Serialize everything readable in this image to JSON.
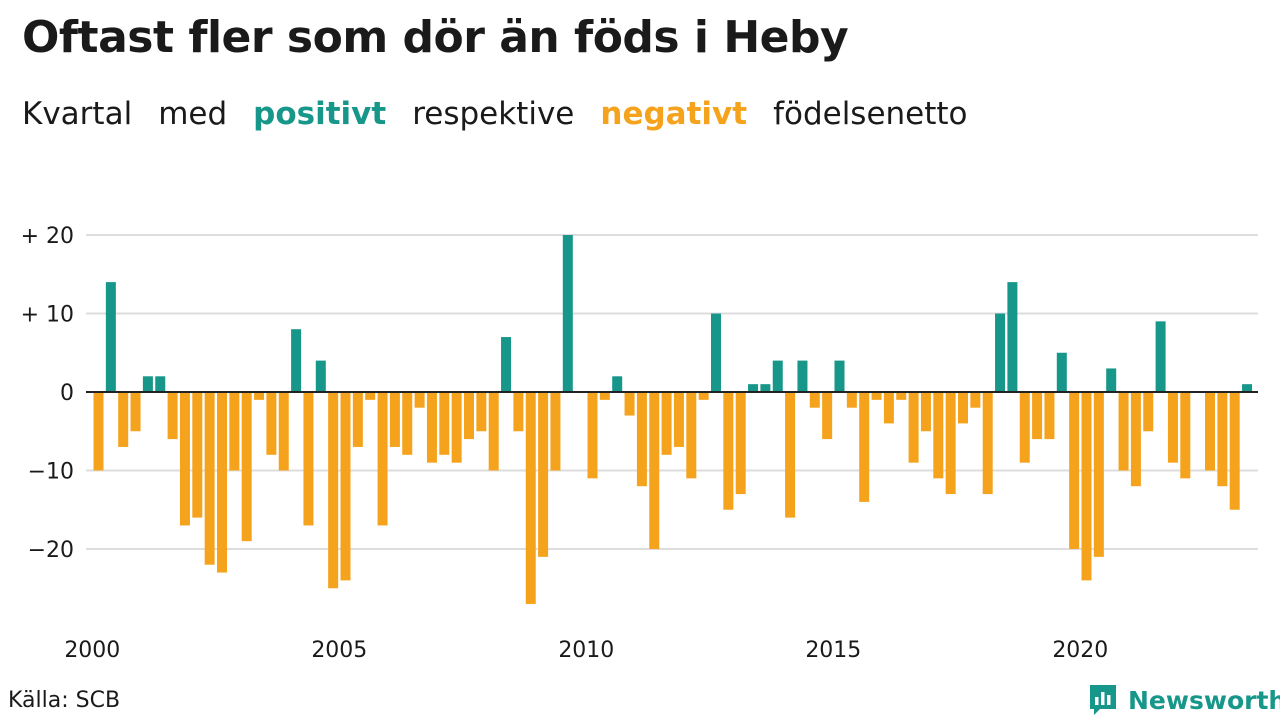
{
  "title": "Oftast fler som dör än föds i Heby",
  "subtitle": {
    "w1": "Kvartal",
    "w2": "med",
    "positive": "positivt",
    "w3": "respektive",
    "negative": "negativt",
    "w4": "födelsenetto"
  },
  "source": "Källa: SCB",
  "brand": {
    "name": "Newsworthy",
    "icon": "newsworthy-logo-icon"
  },
  "colors": {
    "positive": "#17968a",
    "negative": "#f5a31c",
    "grid": "#dddddd",
    "text": "#1a1a1a"
  },
  "chart_data": {
    "type": "bar",
    "title": "Oftast fler som dör än föds i Heby",
    "subtitle": "Kvartal med positivt respektive negativt födelsenetto",
    "xlabel": "",
    "ylabel": "",
    "ylim": [
      -28,
      22
    ],
    "yticks": [
      {
        "value": 20,
        "label": "+ 20"
      },
      {
        "value": 10,
        "label": "+ 10"
      },
      {
        "value": 0,
        "label": "0"
      },
      {
        "value": -10,
        "label": "−10"
      },
      {
        "value": -20,
        "label": "−20"
      }
    ],
    "xticks": [
      "2000",
      "2005",
      "2010",
      "2015",
      "2020"
    ],
    "start_year": 2000,
    "grid": true,
    "legend": "none",
    "values": [
      -10,
      14,
      -7,
      -5,
      2,
      2,
      -6,
      -17,
      -16,
      -22,
      -23,
      -10,
      -19,
      -1,
      -8,
      -10,
      8,
      -17,
      4,
      -25,
      -24,
      -7,
      -1,
      -17,
      -7,
      -8,
      -2,
      -9,
      -8,
      -9,
      -6,
      -5,
      -10,
      7,
      -5,
      -27,
      -21,
      -10,
      20,
      0,
      -11,
      -1,
      2,
      -3,
      -12,
      -20,
      -8,
      -7,
      -11,
      -1,
      10,
      -15,
      -13,
      1,
      1,
      4,
      -16,
      4,
      -2,
      -6,
      4,
      -2,
      -14,
      -1,
      -4,
      -1,
      -9,
      -5,
      -11,
      -13,
      -4,
      -2,
      -13,
      10,
      14,
      -9,
      -6,
      -6,
      5,
      -20,
      -24,
      -21,
      3,
      -10,
      -12,
      -5,
      9,
      -9,
      -11,
      0,
      -10,
      -12,
      -15,
      1
    ]
  }
}
